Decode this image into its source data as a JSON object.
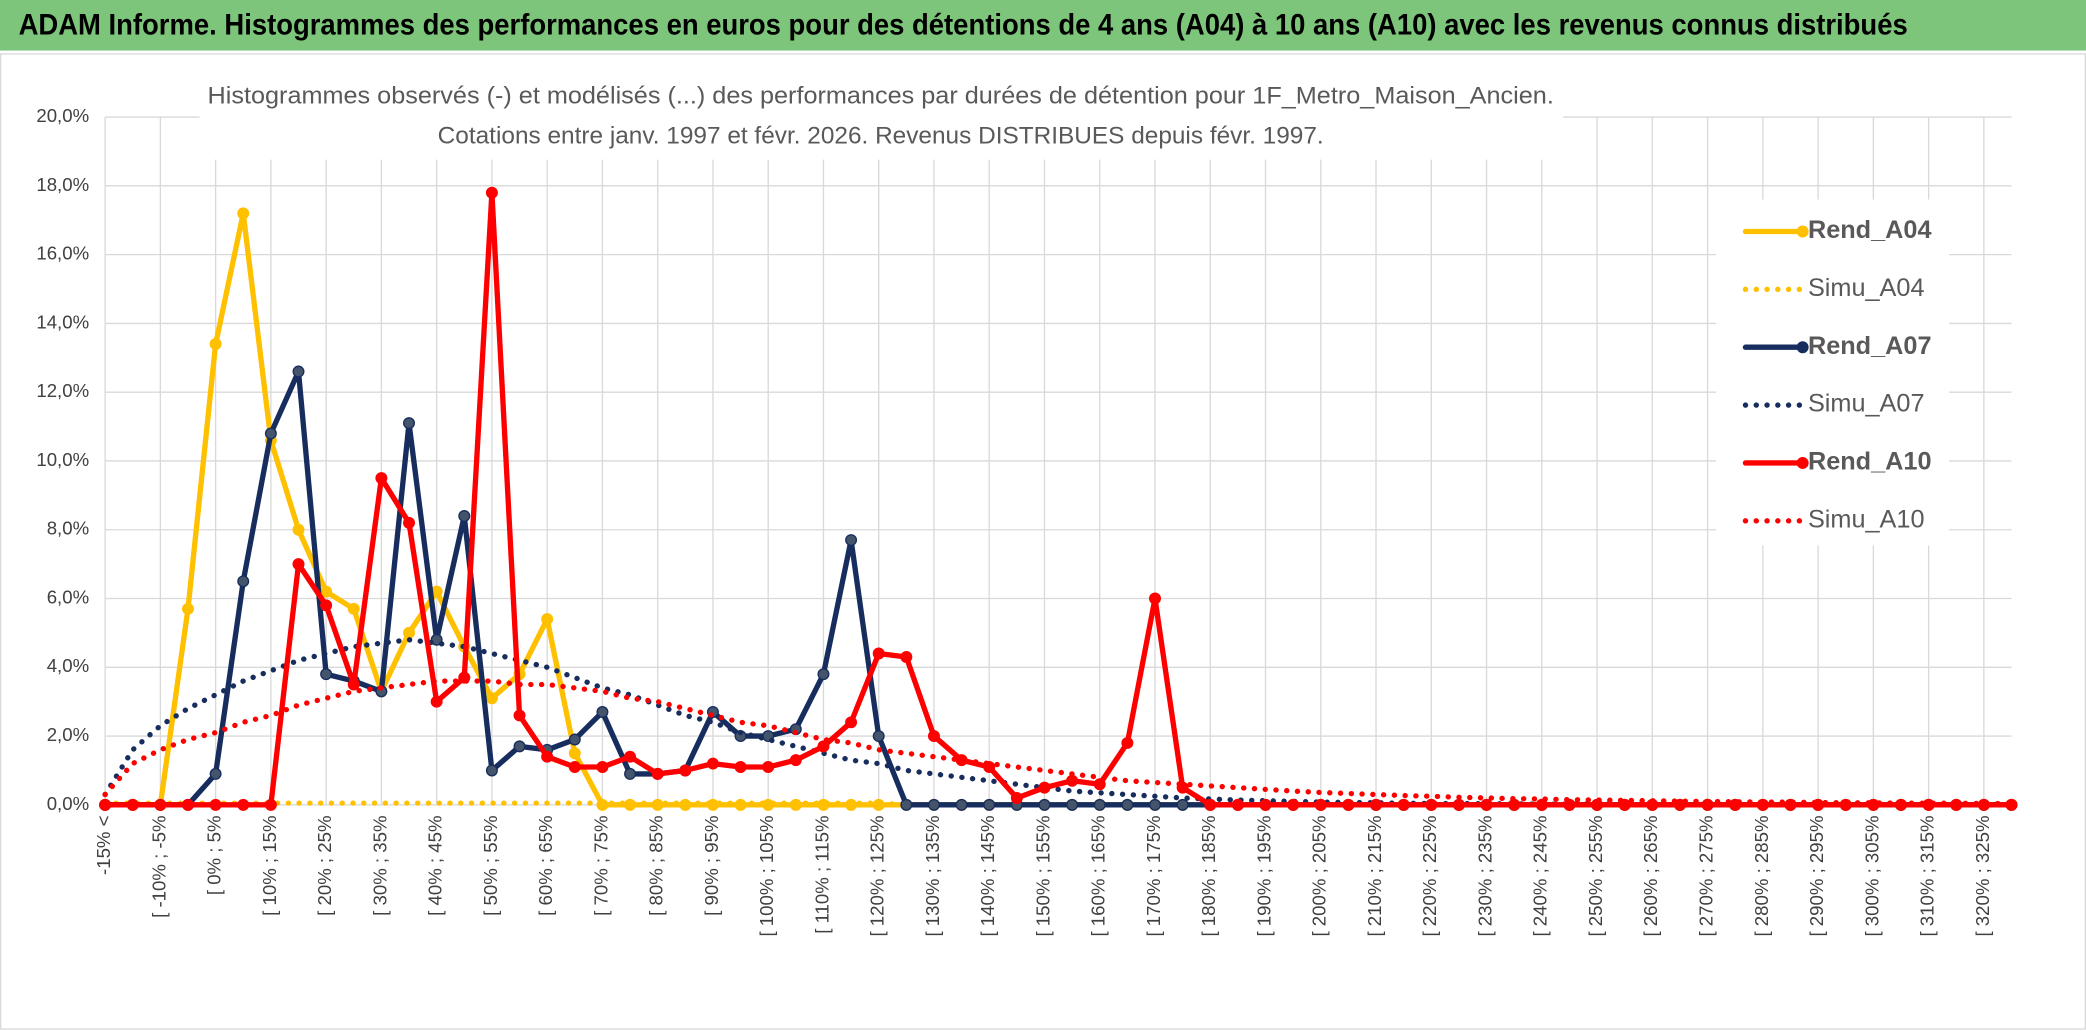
{
  "chart_data": {
    "type": "line",
    "title": "ADAM Informe. Histogrammes des performances en euros pour des détentions de 4 ans (A04) à 10 ans (A10) avec les revenus connus distribués",
    "subtitle": [
      "Histogrammes observés (-) et modélisés (...) des performances par durées de détention pour 1F_Metro_Maison_Ancien.",
      "Cotations entre janv. 1997 et févr. 2026. Revenus DISTRIBUES depuis févr. 1997."
    ],
    "categories": [
      "-15% <",
      null,
      "[ -10% ; -5%",
      null,
      "[ 0% ; 5%",
      null,
      "[ 10% ; 15%",
      null,
      "[ 20% ; 25%",
      null,
      "[ 30% ; 35%",
      null,
      "[ 40% ; 45%",
      null,
      "[ 50% ; 55%",
      null,
      "[ 60% ; 65%",
      null,
      "[ 70% ; 75%",
      null,
      "[ 80% ; 85%",
      null,
      "[ 90% ; 95%",
      null,
      "[ 100% ; 105%",
      null,
      "[ 110% ; 115%",
      null,
      "[ 120% ; 125%",
      null,
      "[ 130% ; 135%",
      null,
      "[ 140% ; 145%",
      null,
      "[ 150% ; 155%",
      null,
      "[ 160% ; 165%",
      null,
      "[ 170% ; 175%",
      null,
      "[ 180% ; 185%",
      null,
      "[ 190% ; 195%",
      null,
      "[ 200% ; 205%",
      null,
      "[ 210% ; 215%",
      null,
      "[ 220% ; 225%",
      null,
      "[ 230% ; 235%",
      null,
      "[ 240% ; 245%",
      null,
      "[ 250% ; 255%",
      null,
      "[ 260% ; 265%",
      null,
      "[ 270% ; 275%",
      null,
      "[ 280% ; 285%",
      null,
      "[ 290% ; 295%",
      null,
      "[ 300% ; 305%",
      null,
      "[ 310% ; 315%",
      null,
      "[ 320% ; 325%",
      null
    ],
    "series": [
      {
        "name": "Rend_A04",
        "color": "#ffc000",
        "style": "solid",
        "marker": true,
        "values": [
          0,
          0,
          0,
          5.7,
          13.4,
          17.2,
          10.6,
          8.0,
          6.2,
          5.7,
          3.3,
          5.0,
          6.2,
          4.6,
          3.1,
          3.8,
          5.4,
          1.5,
          0,
          0,
          0,
          0,
          0,
          0,
          0,
          0,
          0,
          0,
          0,
          0,
          0,
          0,
          0,
          0,
          0,
          0,
          0,
          0,
          0,
          0,
          0,
          0,
          0,
          0,
          0,
          0,
          0,
          0,
          0,
          0,
          0,
          0,
          0,
          0,
          0,
          0,
          0,
          0,
          0,
          0,
          0,
          0,
          0,
          0,
          0,
          0,
          0,
          0,
          0,
          0
        ]
      },
      {
        "name": "Simu_A04",
        "color": "#ffc000",
        "style": "dotted",
        "marker": false,
        "values": [
          0.05,
          0.05,
          0.05,
          0.05,
          0.05,
          0.05,
          0.05,
          0.05,
          0.05,
          0.05,
          0.05,
          0.05,
          0.05,
          0.05,
          0.05,
          0.05,
          0.05,
          0.05,
          0.05,
          0.05,
          0.05,
          0.05,
          0.05,
          0.05,
          0.05,
          0.05,
          0.05,
          0.05,
          0.05,
          0,
          0,
          0,
          0,
          0,
          0,
          0,
          0,
          0,
          0,
          0,
          0,
          0,
          0,
          0,
          0,
          0,
          0,
          0,
          0,
          0,
          0,
          0,
          0,
          0,
          0,
          0,
          0,
          0,
          0,
          0,
          0,
          0,
          0,
          0,
          0,
          0,
          0,
          0,
          0,
          0
        ]
      },
      {
        "name": "Rend_A07",
        "color": "#172d5e",
        "style": "solid",
        "marker": true,
        "values": [
          0,
          0,
          0,
          0,
          0.9,
          6.5,
          10.8,
          12.6,
          3.8,
          3.6,
          3.3,
          11.1,
          4.8,
          8.4,
          1.0,
          1.7,
          1.6,
          1.9,
          2.7,
          0.9,
          0.9,
          1.0,
          2.7,
          2.0,
          2.0,
          2.2,
          3.8,
          7.7,
          2.0,
          0,
          0,
          0,
          0,
          0,
          0,
          0,
          0,
          0,
          0,
          0,
          0,
          0,
          0,
          0,
          0,
          0,
          0,
          0,
          0,
          0,
          0,
          0,
          0,
          0,
          0,
          0,
          0,
          0,
          0,
          0,
          0,
          0,
          0,
          0,
          0,
          0,
          0,
          0,
          0,
          0
        ]
      },
      {
        "name": "Simu_A07",
        "color": "#172d5e",
        "style": "dotted",
        "marker": false,
        "values": [
          0.3,
          1.6,
          2.3,
          2.8,
          3.2,
          3.6,
          3.9,
          4.2,
          4.4,
          4.6,
          4.7,
          4.8,
          4.7,
          4.6,
          4.4,
          4.2,
          4.0,
          3.7,
          3.4,
          3.2,
          2.9,
          2.6,
          2.4,
          2.1,
          1.9,
          1.7,
          1.5,
          1.3,
          1.2,
          1.0,
          0.9,
          0.8,
          0.7,
          0.6,
          0.5,
          0.4,
          0.35,
          0.3,
          0.25,
          0.2,
          0.17,
          0.14,
          0.12,
          0.1,
          0.08,
          0.07,
          0.06,
          0.05,
          0.04,
          0.04,
          0.03,
          0.03,
          0.02,
          0.02,
          0.02,
          0.01,
          0.01,
          0.01,
          0.01,
          0.01,
          0.01,
          0.01,
          0.01,
          0.01,
          0.01,
          0.01,
          0.01,
          0.01,
          0.01,
          0.01
        ]
      },
      {
        "name": "Rend_A10",
        "color": "#ff0000",
        "style": "solid",
        "marker": true,
        "values": [
          0,
          0,
          0,
          0,
          0,
          0,
          0,
          7.0,
          5.8,
          3.5,
          9.5,
          8.2,
          3.0,
          3.7,
          17.8,
          2.6,
          1.4,
          1.1,
          1.1,
          1.4,
          0.9,
          1.0,
          1.2,
          1.1,
          1.1,
          1.3,
          1.7,
          2.4,
          4.4,
          4.3,
          2.0,
          1.3,
          1.1,
          0.2,
          0.5,
          0.7,
          0.6,
          1.8,
          6.0,
          0.5,
          0,
          0,
          0,
          0,
          0,
          0,
          0,
          0,
          0,
          0,
          0,
          0,
          0,
          0,
          0,
          0,
          0,
          0,
          0,
          0,
          0,
          0,
          0,
          0,
          0,
          0,
          0,
          0,
          0,
          0
        ]
      },
      {
        "name": "Simu_A10",
        "color": "#ff0000",
        "style": "dotted",
        "marker": false,
        "values": [
          0.3,
          1.2,
          1.6,
          1.9,
          2.1,
          2.4,
          2.6,
          2.9,
          3.1,
          3.3,
          3.4,
          3.5,
          3.6,
          3.6,
          3.6,
          3.5,
          3.5,
          3.4,
          3.3,
          3.1,
          3.0,
          2.8,
          2.6,
          2.4,
          2.3,
          2.1,
          1.9,
          1.8,
          1.6,
          1.5,
          1.4,
          1.3,
          1.2,
          1.1,
          1.0,
          0.9,
          0.8,
          0.7,
          0.65,
          0.6,
          0.55,
          0.5,
          0.45,
          0.4,
          0.36,
          0.33,
          0.3,
          0.27,
          0.25,
          0.22,
          0.2,
          0.18,
          0.17,
          0.15,
          0.14,
          0.13,
          0.12,
          0.11,
          0.1,
          0.09,
          0.08,
          0.08,
          0.07,
          0.06,
          0.06,
          0.05,
          0.05,
          0.05,
          0.04,
          0.04
        ]
      }
    ],
    "ylim": [
      0,
      20
    ],
    "yticks": [
      {
        "value": 0,
        "label": "0,0%"
      },
      {
        "value": 2,
        "label": "2,0%"
      },
      {
        "value": 4,
        "label": "4,0%"
      },
      {
        "value": 6,
        "label": "6,0%"
      },
      {
        "value": 8,
        "label": "8,0%"
      },
      {
        "value": 10,
        "label": "10,0%"
      },
      {
        "value": 12,
        "label": "12,0%"
      },
      {
        "value": 14,
        "label": "14,0%"
      },
      {
        "value": 16,
        "label": "16,0%"
      },
      {
        "value": 18,
        "label": "18,0%"
      },
      {
        "value": 20,
        "label": "20,0%"
      }
    ],
    "grid": true,
    "legend": "right"
  }
}
